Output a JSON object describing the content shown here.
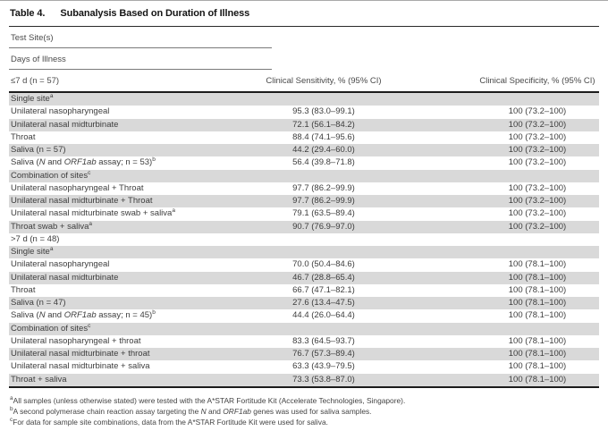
{
  "table": {
    "number_label": "Table 4.",
    "title": "Subanalysis Based on Duration of Illness",
    "field_rows": [
      "Test Site(s)",
      "Days of Illness"
    ],
    "header": {
      "row_label": "≤7 d (n = 57)",
      "sensitivity": "Clinical Sensitivity, % (95% CI)",
      "specificity": "Clinical Specificity, % (95% CI)"
    },
    "rows": [
      {
        "label": "Single site^a",
        "sens": "",
        "spec": ""
      },
      {
        "label": "Unilateral nasopharyngeal",
        "sens": "95.3 (83.0–99.1)",
        "spec": "100 (73.2–100)"
      },
      {
        "label": "Unilateral nasal midturbinate",
        "sens": "72.1 (56.1–84.2)",
        "spec": "100 (73.2–100)"
      },
      {
        "label": "Throat",
        "sens": "88.4 (74.1–95.6)",
        "spec": "100 (73.2–100)"
      },
      {
        "label": "Saliva (n = 57)",
        "sens": "44.2 (29.4–60.0)",
        "spec": "100 (73.2–100)"
      },
      {
        "label": "Saliva (*N* and *ORF1ab* assay; n = 53)^b",
        "sens": "56.4 (39.8–71.8)",
        "spec": "100 (73.2–100)"
      },
      {
        "label": "Combination of sites^c",
        "sens": "",
        "spec": ""
      },
      {
        "label": "Unilateral nasopharyngeal + Throat",
        "sens": "97.7 (86.2–99.9)",
        "spec": "100 (73.2–100)"
      },
      {
        "label": "Unilateral nasal midturbinate + Throat",
        "sens": "97.7 (86.2–99.9)",
        "spec": "100 (73.2–100)"
      },
      {
        "label": "Unilateral nasal midturbinate swab + saliva^a",
        "sens": "79.1 (63.5–89.4)",
        "spec": "100 (73.2–100)"
      },
      {
        "label": "Throat swab + saliva^a",
        "sens": "90.7 (76.9–97.0)",
        "spec": "100 (73.2–100)"
      },
      {
        "label": ">7 d (n = 48)",
        "sens": "",
        "spec": ""
      },
      {
        "label": "Single site^a",
        "sens": "",
        "spec": ""
      },
      {
        "label": "Unilateral nasopharyngeal",
        "sens": "70.0 (50.4–84.6)",
        "spec": "100 (78.1–100)"
      },
      {
        "label": "Unilateral nasal midturbinate",
        "sens": "46.7 (28.8–65.4)",
        "spec": "100 (78.1–100)"
      },
      {
        "label": "Throat",
        "sens": "66.7 (47.1–82.1)",
        "spec": "100 (78.1–100)"
      },
      {
        "label": "Saliva (n = 47)",
        "sens": "27.6 (13.4–47.5)",
        "spec": "100 (78.1–100)"
      },
      {
        "label": "Saliva (*N* and *ORF1ab* assay; n = 45)^b",
        "sens": "44.4 (26.0–64.4)",
        "spec": "100 (78.1–100)"
      },
      {
        "label": "Combination of sites^c",
        "sens": "",
        "spec": ""
      },
      {
        "label": "Unilateral nasopharyngeal + throat",
        "sens": "83.3 (64.5–93.7)",
        "spec": "100 (78.1–100)"
      },
      {
        "label": "Unilateral nasal midturbinate + throat",
        "sens": "76.7 (57.3–89.4)",
        "spec": "100 (78.1–100)"
      },
      {
        "label": "Unilateral nasal midturbinate + saliva",
        "sens": "63.3 (43.9–79.5)",
        "spec": "100 (78.1–100)"
      },
      {
        "label": "Throat + saliva",
        "sens": "73.3 (53.8–87.0)",
        "spec": "100 (78.1–100)"
      }
    ],
    "footnotes": [
      {
        "marker": "a",
        "text": "All samples (unless otherwise stated) were tested with the A*STAR Fortitude Kit (Accelerate Technologies, Singapore)."
      },
      {
        "marker": "b",
        "text": "A second polymerase chain reaction assay targeting the *N* and *ORF1ab* genes was used for saliva samples."
      },
      {
        "marker": "c",
        "text": "For data for sample site combinations, data from the A*STAR Fortitude Kit were used for saliva."
      }
    ],
    "colors": {
      "row_shade": "#d9d9d9",
      "rule_dark": "#1c1c1c",
      "text": "#3d3d3d"
    }
  }
}
